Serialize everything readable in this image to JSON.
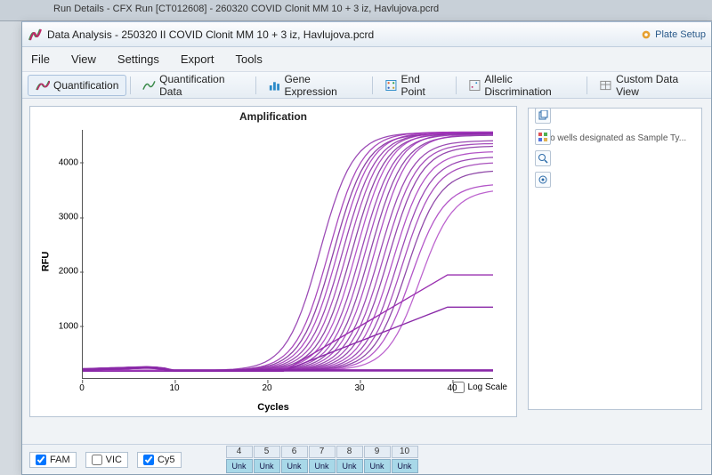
{
  "background_window_title": "Run Details - CFX Run [CT012608] - 260320 COVID Clonit MM 10 + 3 iz, Havlujova.pcrd",
  "window_title": "Data Analysis - 250320 II COVID Clonit MM 10 + 3 iz, Havlujova.pcrd",
  "titlebar_tools": {
    "plate_setup": "Plate Setup"
  },
  "menu": {
    "file": "File",
    "view": "View",
    "settings": "Settings",
    "export": "Export",
    "tools": "Tools"
  },
  "toolbar": {
    "quantification": "Quantification",
    "quantification_data": "Quantification Data",
    "gene_expression": "Gene Expression",
    "end_point": "End Point",
    "allelic": "Allelic Discrimination",
    "custom": "Custom Data View"
  },
  "chart": {
    "title": "Amplification",
    "ylabel": "RFU",
    "xlabel": "Cycles",
    "xlim": [
      0,
      45
    ],
    "ylim": [
      0,
      4600
    ],
    "yticks": [
      1000,
      2000,
      3000,
      4000
    ],
    "xticks": [
      0,
      10,
      20,
      30,
      40
    ],
    "log_scale_label": "Log Scale",
    "background": "#ffffff",
    "axis_color": "#555555",
    "curves": [
      {
        "color": "#8a2aa8",
        "ct": 22,
        "plateau": 4550
      },
      {
        "color": "#9a2ab0",
        "ct": 23,
        "plateau": 4560
      },
      {
        "color": "#7a2098",
        "ct": 23.5,
        "plateau": 4530
      },
      {
        "color": "#a030b8",
        "ct": 24,
        "plateau": 4560
      },
      {
        "color": "#8828a4",
        "ct": 24.5,
        "plateau": 4540
      },
      {
        "color": "#9a30b0",
        "ct": 25,
        "plateau": 4550
      },
      {
        "color": "#7a2898",
        "ct": 25.5,
        "plateau": 4530
      },
      {
        "color": "#a838c0",
        "ct": 26,
        "plateau": 4560
      },
      {
        "color": "#8a2aa8",
        "ct": 26.5,
        "plateau": 4520
      },
      {
        "color": "#9830b4",
        "ct": 27,
        "plateau": 4550
      },
      {
        "color": "#7e2a9c",
        "ct": 27.5,
        "plateau": 4500
      },
      {
        "color": "#a034ba",
        "ct": 28,
        "plateau": 4520
      },
      {
        "color": "#8a2ca6",
        "ct": 28.5,
        "plateau": 4400
      },
      {
        "color": "#9630b0",
        "ct": 29,
        "plateau": 4350
      },
      {
        "color": "#8228a0",
        "ct": 29.5,
        "plateau": 4300
      },
      {
        "color": "#a436bc",
        "ct": 30,
        "plateau": 4200
      },
      {
        "color": "#8a2aa8",
        "ct": 30.5,
        "plateau": 4100
      },
      {
        "color": "#9a32b2",
        "ct": 31,
        "plateau": 4000
      },
      {
        "color": "#7c2a9a",
        "ct": 31.5,
        "plateau": 3850
      },
      {
        "color": "#a638be",
        "ct": 32,
        "plateau": 3600
      },
      {
        "color": "#b048c6",
        "ct": 33,
        "plateau": 3500
      }
    ],
    "flat_lines": [
      {
        "color": "#9a30b0",
        "level": 1900
      },
      {
        "color": "#8a2aa8",
        "level": 1300
      }
    ],
    "baseline": {
      "color": "#8a2aa8",
      "baseline_level": 140,
      "rise_x": 7.5,
      "drop_x": 9.5,
      "peak": 180,
      "tail": 110
    }
  },
  "right_panel": {
    "message": "No wells designated as Sample Ty..."
  },
  "fluorophores": {
    "fam": {
      "label": "FAM",
      "checked": true
    },
    "vic": {
      "label": "VIC",
      "checked": false
    },
    "cy5": {
      "label": "Cy5",
      "checked": true
    }
  },
  "wells": {
    "columns": [
      "4",
      "5",
      "6",
      "7",
      "8",
      "9",
      "10"
    ],
    "label": "Unk"
  },
  "colors": {
    "accent": "#2a6aa8",
    "toolbar_bg": "#eaf0f6",
    "well_bg": "#a8d8e8"
  }
}
